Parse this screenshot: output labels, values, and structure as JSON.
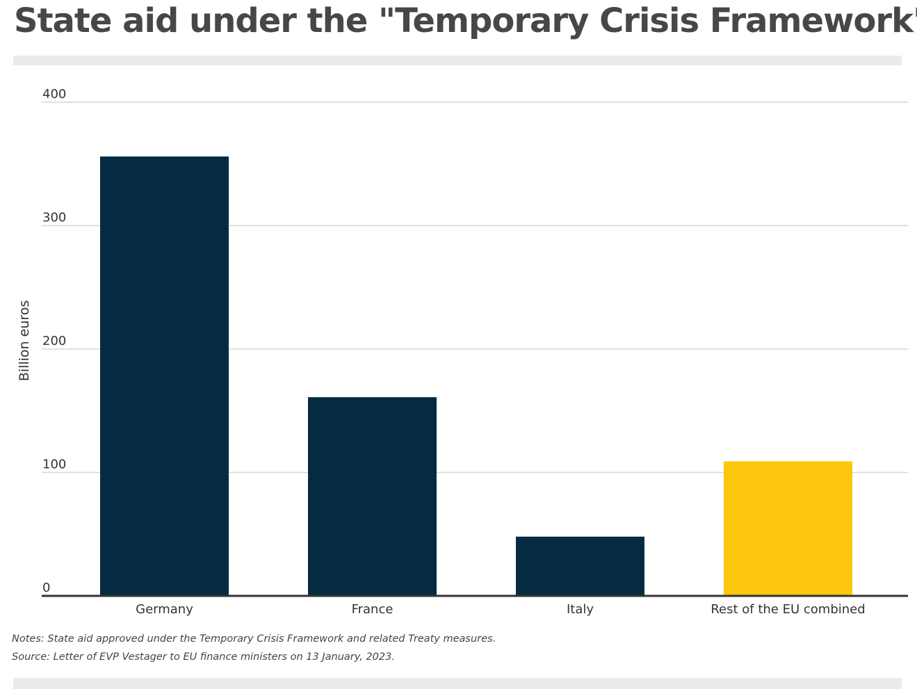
{
  "title": "State aid under the \"Temporary Crisis Framework\"",
  "notes": {
    "notes_line": "Notes: State aid approved under the Temporary Crisis Framework and related Treaty measures.",
    "source_line": "Source: Letter of EVP Vestager to EU finance ministers on 13 January, 2023."
  },
  "chart_data": {
    "type": "bar",
    "categories": [
      "Germany",
      "France",
      "Italy",
      "Rest of the EU combined"
    ],
    "values": [
      356,
      161,
      48,
      109
    ],
    "bar_colors": [
      "#042b41",
      "#042b41",
      "#042b41",
      "#fcc70d"
    ],
    "xlabel": "",
    "ylabel": "Billion euros",
    "ylim": [
      0,
      400
    ],
    "yticks": [
      0,
      100,
      200,
      300,
      400
    ],
    "grid": true,
    "gridline_color": "#d6d6d6",
    "axis_color": "#333333"
  }
}
